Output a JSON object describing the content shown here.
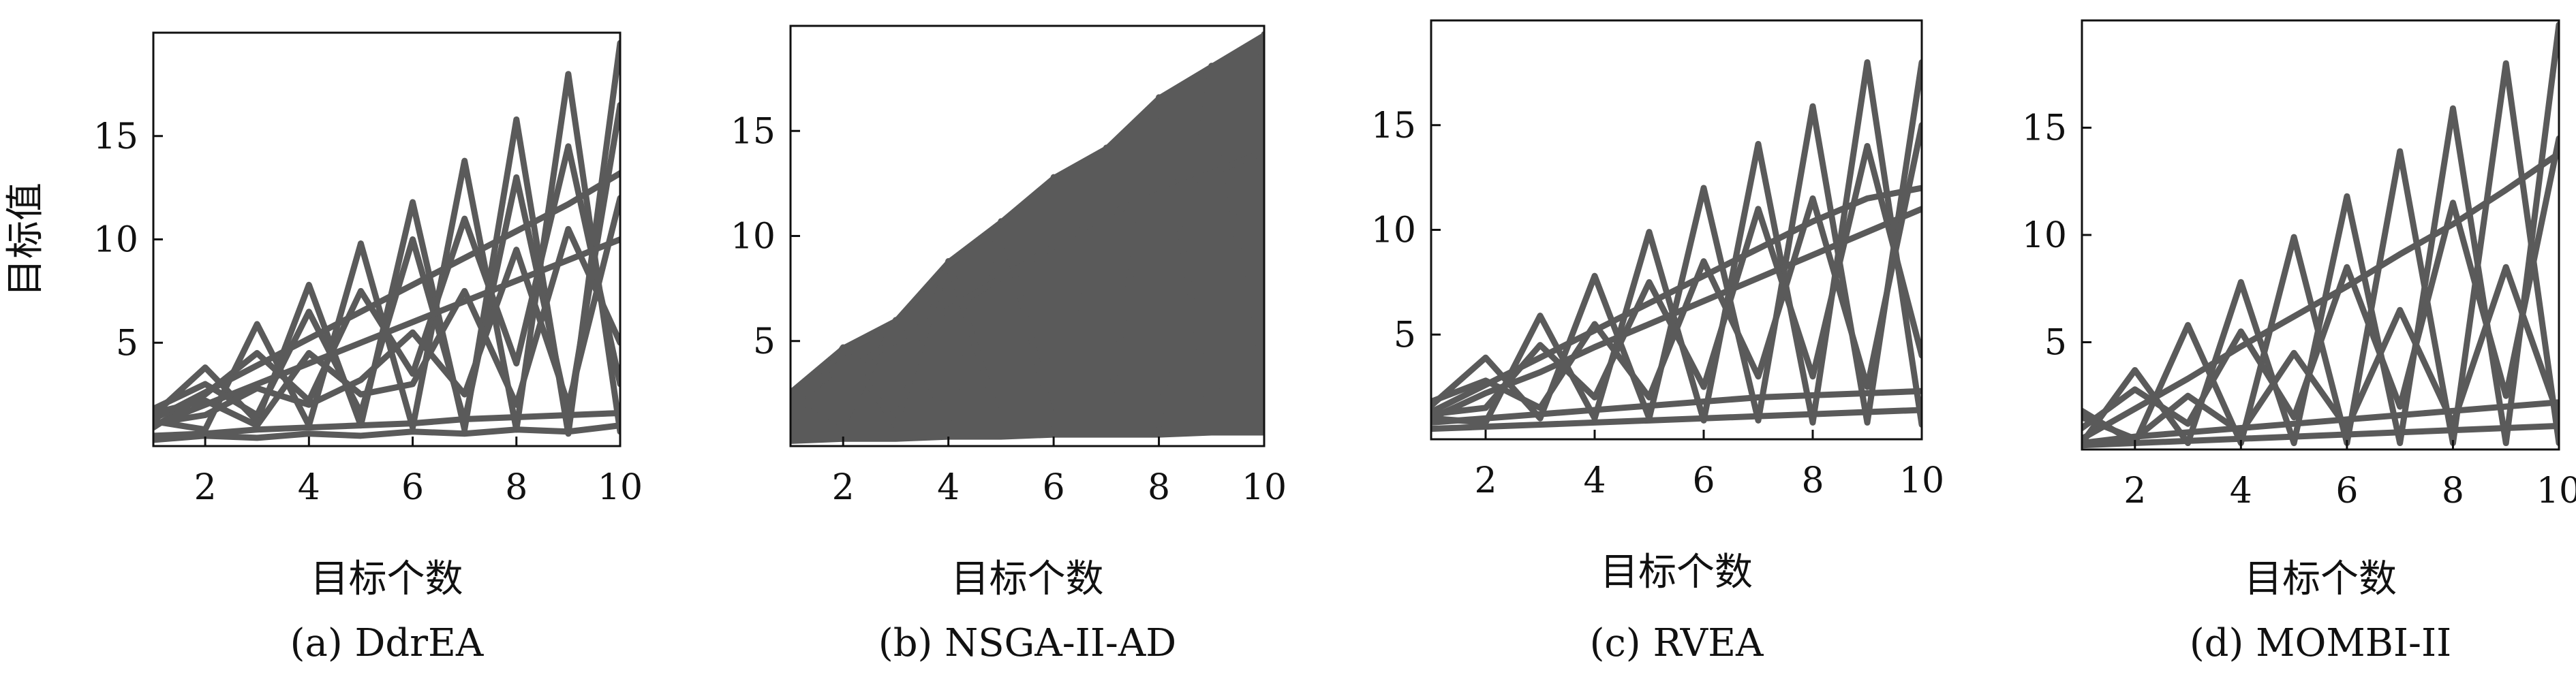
{
  "ylabel": "目标值",
  "chart_data": [
    {
      "type": "line",
      "subtitle": "(a) DdrEA",
      "xlabel": "目标个数",
      "ylabel": "目标值",
      "x": [
        1,
        2,
        3,
        4,
        5,
        6,
        7,
        8,
        9,
        10
      ],
      "xticks": [
        2,
        4,
        6,
        8,
        10
      ],
      "yticks": [
        5,
        10,
        15
      ],
      "xlim": [
        1,
        10
      ],
      "ylim": [
        0,
        20
      ],
      "line_color": "#5a5a5a",
      "grid": false,
      "series": [
        {
          "values": [
            1.5,
            3.8,
            1.2,
            7.8,
            1.0,
            11.8,
            0.8,
            15.8,
            0.6,
            19.5
          ]
        },
        {
          "values": [
            1.2,
            0.8,
            5.9,
            1.0,
            9.8,
            0.9,
            13.8,
            0.8,
            18.0,
            0.7
          ]
        },
        {
          "values": [
            1.8,
            3.0,
            1.5,
            6.5,
            1.6,
            10.0,
            1.2,
            13.0,
            1.5,
            16.5
          ]
        },
        {
          "values": [
            0.9,
            2.5,
            4.5,
            2.2,
            7.5,
            3.5,
            11.0,
            4.0,
            14.5,
            3.0
          ]
        },
        {
          "values": [
            1.0,
            2.0,
            3.0,
            4.0,
            5.0,
            6.0,
            7.0,
            8.0,
            9.0,
            10.0
          ]
        },
        {
          "values": [
            1.3,
            2.6,
            3.9,
            5.2,
            6.5,
            7.8,
            9.1,
            10.4,
            11.7,
            13.2
          ]
        },
        {
          "values": [
            0.5,
            0.6,
            0.8,
            0.9,
            1.0,
            1.1,
            1.3,
            1.4,
            1.5,
            1.6
          ]
        },
        {
          "values": [
            1.1,
            1.5,
            2.8,
            2.0,
            3.2,
            5.5,
            2.5,
            9.5,
            2.0,
            12.0
          ]
        },
        {
          "values": [
            0.3,
            0.5,
            0.4,
            0.6,
            0.5,
            0.7,
            0.6,
            0.8,
            0.7,
            1.0
          ]
        },
        {
          "values": [
            1.6,
            2.2,
            1.0,
            4.5,
            2.5,
            3.0,
            7.5,
            2.0,
            10.5,
            5.0
          ]
        }
      ]
    },
    {
      "type": "area",
      "subtitle": "(b) NSGA-II-AD",
      "xlabel": "目标个数",
      "ylabel": "",
      "x": [
        1,
        2,
        3,
        4,
        5,
        6,
        7,
        8,
        9,
        10
      ],
      "xticks": [
        2,
        4,
        6,
        8,
        10
      ],
      "yticks": [
        5,
        10,
        15
      ],
      "xlim": [
        1,
        10
      ],
      "ylim": [
        0,
        20
      ],
      "line_color": "#5a5a5a",
      "grid": false,
      "upper": [
        2.6,
        4.7,
        6.0,
        8.8,
        10.7,
        12.8,
        14.2,
        16.6,
        18.1,
        19.6
      ],
      "lower": [
        0.2,
        0.3,
        0.3,
        0.4,
        0.4,
        0.5,
        0.5,
        0.5,
        0.6,
        0.6
      ],
      "series": [
        {
          "values": [
            2.6,
            1.0,
            6.0,
            1.2,
            10.7,
            1.0,
            14.2,
            1.0,
            18.1,
            1.0
          ]
        },
        {
          "values": [
            1.0,
            4.7,
            1.0,
            8.8,
            1.0,
            12.8,
            1.0,
            16.6,
            1.0,
            19.6
          ]
        },
        {
          "values": [
            1.5,
            3.5,
            5.0,
            6.5,
            8.0,
            9.5,
            11.0,
            12.0,
            13.0,
            14.0
          ]
        }
      ]
    },
    {
      "type": "line",
      "subtitle": "(c) RVEA",
      "xlabel": "目标个数",
      "ylabel": "",
      "x": [
        1,
        2,
        3,
        4,
        5,
        6,
        7,
        8,
        9,
        10
      ],
      "xticks": [
        2,
        4,
        6,
        8,
        10
      ],
      "yticks": [
        5,
        10,
        15
      ],
      "xlim": [
        1,
        10
      ],
      "ylim": [
        0,
        20
      ],
      "line_color": "#5a5a5a",
      "grid": false,
      "series": [
        {
          "values": [
            1.6,
            3.9,
            1.0,
            7.8,
            1.0,
            12.0,
            0.9,
            15.9,
            0.8,
            18.0
          ]
        },
        {
          "values": [
            1.0,
            0.8,
            5.9,
            1.0,
            9.9,
            0.9,
            14.1,
            0.8,
            18.0,
            0.7
          ]
        },
        {
          "values": [
            1.3,
            2.6,
            3.9,
            5.2,
            6.5,
            7.8,
            9.1,
            10.4,
            11.5,
            12.0
          ]
        },
        {
          "values": [
            1.0,
            2.2,
            3.2,
            4.4,
            5.5,
            6.6,
            7.7,
            8.8,
            9.9,
            11.0
          ]
        },
        {
          "values": [
            0.8,
            1.0,
            1.2,
            1.4,
            1.6,
            1.8,
            2.0,
            2.1,
            2.2,
            2.3
          ]
        },
        {
          "values": [
            0.5,
            0.6,
            0.7,
            0.8,
            0.9,
            1.0,
            1.1,
            1.2,
            1.3,
            1.4
          ]
        },
        {
          "values": [
            1.8,
            2.8,
            1.5,
            5.5,
            2.0,
            8.5,
            3.0,
            11.5,
            2.5,
            15.0
          ]
        },
        {
          "values": [
            1.2,
            1.5,
            4.5,
            2.0,
            7.5,
            2.5,
            11.0,
            3.0,
            14.0,
            4.0
          ]
        }
      ]
    },
    {
      "type": "line",
      "subtitle": "(d) MOMBI-II",
      "xlabel": "目标个数",
      "ylabel": "",
      "x": [
        1,
        2,
        3,
        4,
        5,
        6,
        7,
        8,
        9,
        10
      ],
      "xticks": [
        2,
        4,
        6,
        8,
        10
      ],
      "yticks": [
        5,
        10,
        15
      ],
      "xlim": [
        1,
        10
      ],
      "ylim": [
        0,
        20
      ],
      "line_color": "#5a5a5a",
      "grid": false,
      "series": [
        {
          "values": [
            1.8,
            0.3,
            5.8,
            0.3,
            9.9,
            0.3,
            13.9,
            0.3,
            18.0,
            0.3
          ]
        },
        {
          "values": [
            0.3,
            3.7,
            0.3,
            7.8,
            0.3,
            11.8,
            0.3,
            15.9,
            0.3,
            19.8
          ]
        },
        {
          "values": [
            0.5,
            1.9,
            3.3,
            4.8,
            6.2,
            7.6,
            9.1,
            10.5,
            12.1,
            13.8
          ]
        },
        {
          "values": [
            1.5,
            0.5,
            2.5,
            0.8,
            4.5,
            1.0,
            6.5,
            1.2,
            8.5,
            1.5
          ]
        },
        {
          "values": [
            0.3,
            0.6,
            0.8,
            1.0,
            1.2,
            1.4,
            1.6,
            1.8,
            2.0,
            2.2
          ]
        },
        {
          "values": [
            0.2,
            0.3,
            0.4,
            0.5,
            0.6,
            0.7,
            0.8,
            0.9,
            1.0,
            1.1
          ]
        },
        {
          "values": [
            1.0,
            2.8,
            1.2,
            5.5,
            1.5,
            8.5,
            2.0,
            11.5,
            2.5,
            14.5
          ]
        }
      ]
    }
  ]
}
